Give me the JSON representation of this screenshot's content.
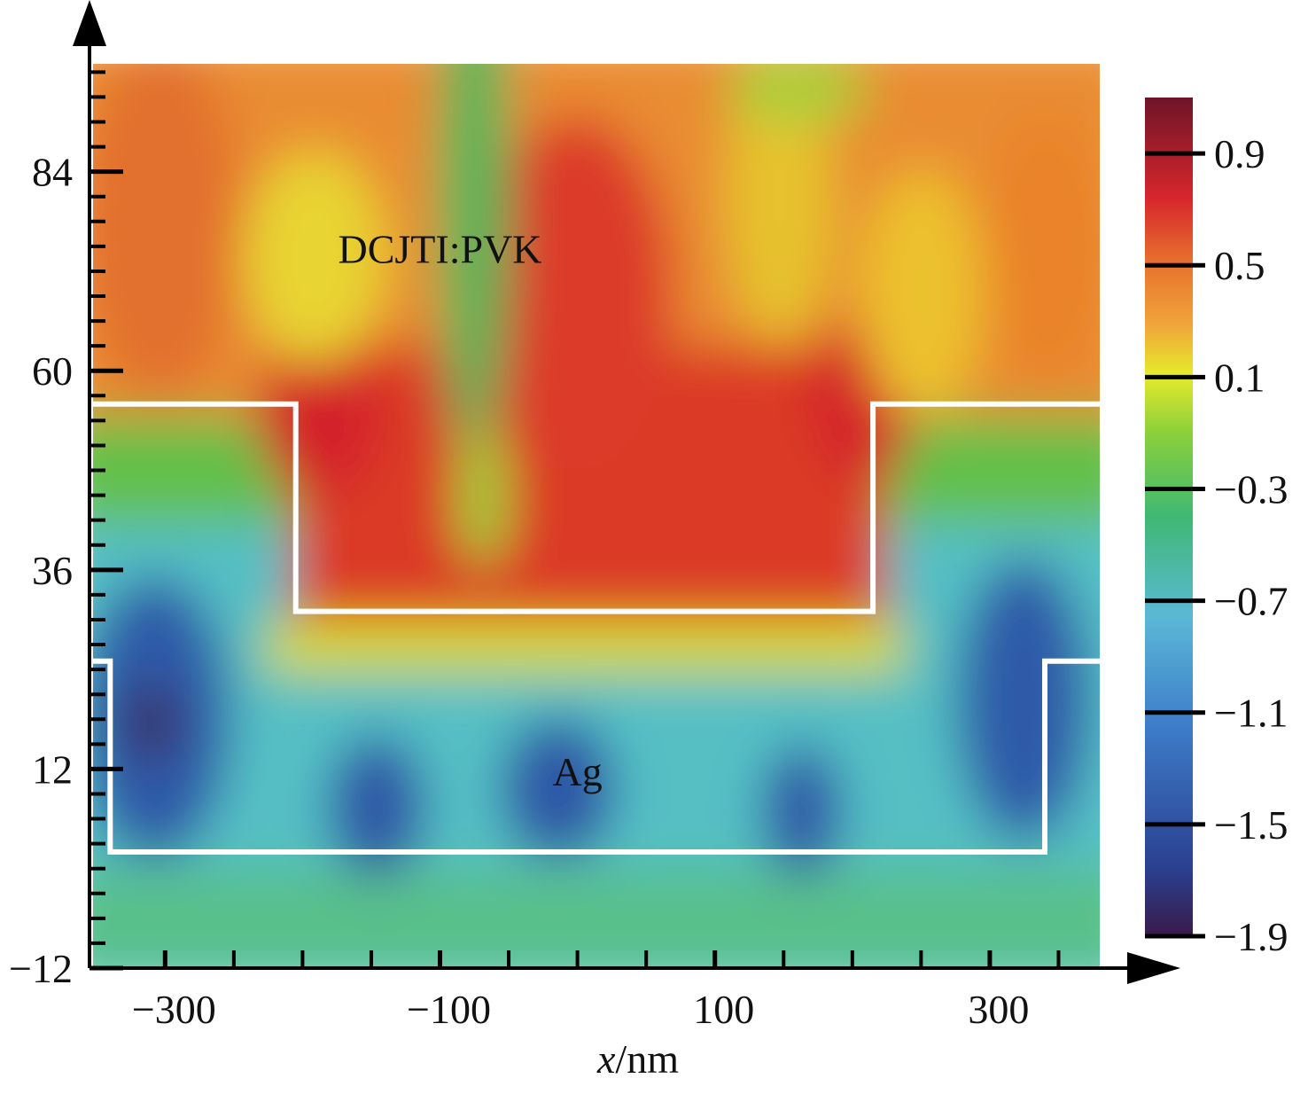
{
  "chart_data": {
    "type": "heatmap",
    "x_axis": {
      "title_italic": "x",
      "title_unit": "/nm",
      "range": [
        -355,
        380
      ],
      "ticks": [
        -300,
        -100,
        100,
        300
      ],
      "tick_labels": [
        "−300",
        "−100",
        "100",
        "300"
      ]
    },
    "y_axis": {
      "title": "",
      "range": [
        -12,
        97
      ],
      "ticks": [
        -12,
        12,
        36,
        60,
        84
      ],
      "tick_labels": [
        "−12",
        "12",
        "36",
        "60",
        "84"
      ]
    },
    "colorbar": {
      "range": [
        -1.9,
        1.1
      ],
      "ticks": [
        0.9,
        0.5,
        0.1,
        -0.3,
        -0.7,
        -1.1,
        -1.5,
        -1.9
      ],
      "tick_labels": [
        "0.9",
        "0.5",
        "0.1",
        "−0.3",
        "−0.7",
        "−1.1",
        "−1.5",
        "−1.9"
      ],
      "colors": [
        "#3a1a4a",
        "#2a3f8f",
        "#3d7cc9",
        "#5bb8d6",
        "#3fb873",
        "#8bd03a",
        "#e6ea2c",
        "#f0a43a",
        "#e8742e",
        "#d8262c",
        "#6e1428"
      ]
    },
    "annotations": [
      {
        "text": "DCJTI:PVK",
        "x": -100,
        "y": 73
      },
      {
        "text": "Ag",
        "x": 0,
        "y": 10
      }
    ],
    "boundaries": {
      "color": "#ffffff",
      "upper_grating": {
        "x": [
          -355,
          -205,
          -205,
          215,
          215,
          380
        ],
        "y": [
          56,
          56,
          31,
          31,
          56,
          56
        ]
      },
      "lower_grating": {
        "x": [
          -355,
          -340,
          -340,
          340,
          340,
          380
        ],
        "y": [
          25,
          25,
          2,
          2,
          25,
          25
        ]
      }
    },
    "field_description": "Normalized field distribution, values from about -1.9 (dark blue) to 1.1 (dark red)"
  }
}
